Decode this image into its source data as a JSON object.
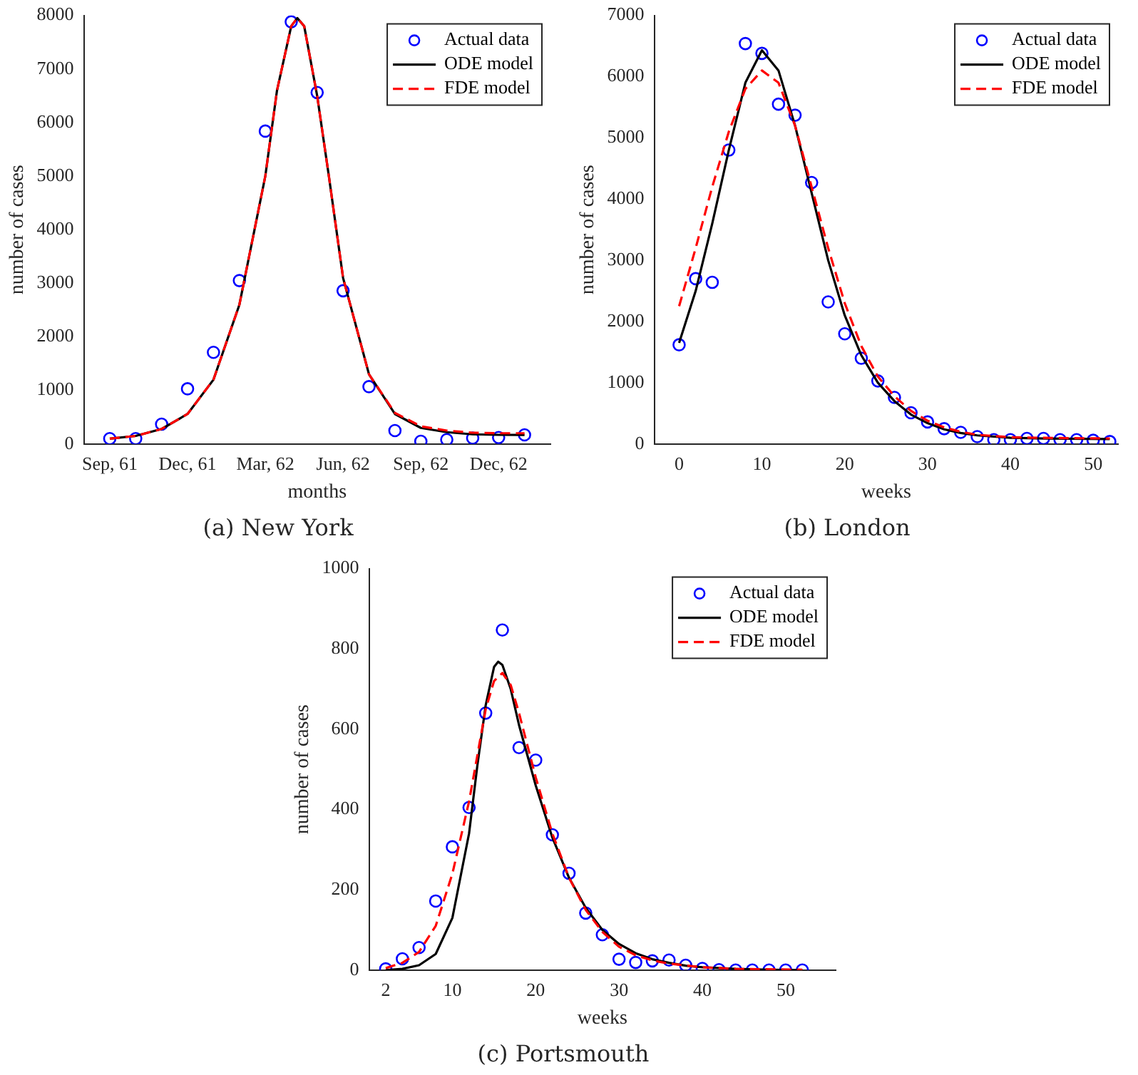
{
  "chart_data": [
    {
      "type": "line",
      "title": "(a) New York",
      "xlabel": "months",
      "ylabel": "number of cases",
      "legend": "top right",
      "grid": false,
      "xlim": [
        "1961-08",
        "1963-02"
      ],
      "xticks": [
        {
          "value": "1961-09",
          "label": "Sep, 61"
        },
        {
          "value": "1961-12",
          "label": "Dec, 61"
        },
        {
          "value": "1962-03",
          "label": "Mar, 62"
        },
        {
          "value": "1962-06",
          "label": "Jun, 62"
        },
        {
          "value": "1962-09",
          "label": "Sep, 62"
        },
        {
          "value": "1962-12",
          "label": "Dec, 62"
        }
      ],
      "ylim": [
        0,
        8000
      ],
      "yticks": [
        0,
        1000,
        2000,
        3000,
        4000,
        5000,
        6000,
        7000,
        8000
      ],
      "series": [
        {
          "name": "Actual data",
          "type": "scatter",
          "marker": "circle",
          "color": "#0000ff",
          "x": [
            "1961-09",
            "1961-10",
            "1961-11",
            "1961-12",
            "1962-01",
            "1962-02",
            "1962-03",
            "1962-04",
            "1962-05",
            "1962-06",
            "1962-07",
            "1962-08",
            "1962-09",
            "1962-10",
            "1962-11",
            "1962-12",
            "1963-01"
          ],
          "values": [
            100,
            100,
            370,
            1030,
            1710,
            3050,
            5840,
            7880,
            6560,
            2860,
            1070,
            250,
            50,
            80,
            110,
            120,
            170
          ]
        },
        {
          "name": "ODE model",
          "type": "line",
          "marker": "none",
          "line_style": "solid",
          "color": "#000000",
          "x": [
            "1961-09-01",
            "1961-10-01",
            "1961-11-01",
            "1961-12-01",
            "1962-01-01",
            "1962-02-01",
            "1962-03-01",
            "1962-03-15",
            "1962-04-01",
            "1962-04-08",
            "1962-04-16",
            "1962-05-01",
            "1962-05-15",
            "1962-06-01",
            "1962-07-01",
            "1962-08-01",
            "1962-09-01",
            "1962-10-01",
            "1962-11-01",
            "1962-12-01",
            "1963-01-01"
          ],
          "values": [
            100,
            150,
            280,
            560,
            1200,
            2600,
            5000,
            6600,
            7800,
            7950,
            7800,
            6500,
            5000,
            3100,
            1300,
            560,
            300,
            220,
            180,
            170,
            170
          ]
        },
        {
          "name": "FDE model",
          "type": "line",
          "marker": "none",
          "line_style": "dashed",
          "color": "#ff0000",
          "x": [
            "1961-09-01",
            "1961-10-01",
            "1961-11-01",
            "1961-12-01",
            "1962-01-01",
            "1962-02-01",
            "1962-03-01",
            "1962-03-15",
            "1962-04-01",
            "1962-04-08",
            "1962-04-16",
            "1962-05-01",
            "1962-05-15",
            "1962-06-01",
            "1962-07-01",
            "1962-08-01",
            "1962-09-01",
            "1962-10-01",
            "1962-11-01",
            "1962-12-01",
            "1963-01-01"
          ],
          "values": [
            100,
            150,
            280,
            560,
            1200,
            2600,
            5000,
            6600,
            7800,
            7950,
            7800,
            6500,
            5000,
            3100,
            1300,
            580,
            330,
            250,
            210,
            200,
            200
          ]
        }
      ]
    },
    {
      "type": "line",
      "title": "(b) London",
      "xlabel": "weeks",
      "ylabel": "number of cases",
      "legend": "top right",
      "grid": false,
      "xlim": [
        -3,
        53
      ],
      "xticks": [
        0,
        10,
        20,
        30,
        40,
        50
      ],
      "ylim": [
        0,
        7000
      ],
      "yticks": [
        0,
        1000,
        2000,
        3000,
        4000,
        5000,
        6000,
        7000
      ],
      "series": [
        {
          "name": "Actual data",
          "type": "scatter",
          "marker": "circle",
          "color": "#0000ff",
          "x": [
            0,
            2,
            4,
            6,
            8,
            10,
            12,
            14,
            16,
            18,
            20,
            22,
            24,
            26,
            28,
            30,
            32,
            34,
            36,
            38,
            40,
            42,
            44,
            46,
            48,
            50,
            52
          ],
          "values": [
            1620,
            2700,
            2640,
            4800,
            6540,
            6380,
            5550,
            5370,
            4270,
            2320,
            1800,
            1400,
            1030,
            760,
            510,
            360,
            250,
            190,
            120,
            70,
            70,
            90,
            90,
            70,
            70,
            60,
            40
          ]
        },
        {
          "name": "ODE model",
          "type": "line",
          "marker": "none",
          "line_style": "solid",
          "color": "#000000",
          "x": [
            0,
            2,
            4,
            6,
            8,
            10,
            12,
            14,
            16,
            18,
            20,
            22,
            24,
            26,
            28,
            30,
            32,
            34,
            36,
            40,
            44,
            52
          ],
          "values": [
            1650,
            2500,
            3600,
            4800,
            5900,
            6430,
            6100,
            5200,
            4100,
            3000,
            2100,
            1450,
            1000,
            700,
            480,
            340,
            240,
            180,
            140,
            100,
            90,
            80
          ]
        },
        {
          "name": "FDE model",
          "type": "line",
          "marker": "none",
          "line_style": "dashed",
          "color": "#ff0000",
          "x": [
            0,
            2,
            4,
            6,
            8,
            10,
            12,
            14,
            16,
            18,
            20,
            22,
            24,
            26,
            28,
            30,
            32,
            34,
            36,
            40,
            44,
            52
          ],
          "values": [
            2250,
            3200,
            4200,
            5100,
            5800,
            6100,
            5900,
            5200,
            4200,
            3200,
            2300,
            1600,
            1100,
            780,
            540,
            380,
            270,
            200,
            150,
            110,
            100,
            90
          ]
        }
      ]
    },
    {
      "type": "line",
      "title": "(c) Portsmouth",
      "xlabel": "weeks",
      "ylabel": "number of cases",
      "legend": "top right",
      "grid": false,
      "xlim": [
        0,
        56
      ],
      "xticks": [
        2,
        10,
        20,
        30,
        40,
        50
      ],
      "ylim": [
        0,
        1000
      ],
      "yticks": [
        0,
        200,
        400,
        600,
        800,
        1000
      ],
      "series": [
        {
          "name": "Actual data",
          "type": "scatter",
          "marker": "circle",
          "color": "#0000ff",
          "x": [
            2,
            4,
            6,
            8,
            10,
            12,
            14,
            16,
            18,
            20,
            22,
            24,
            26,
            28,
            30,
            32,
            34,
            36,
            38,
            40,
            42,
            44,
            46,
            48,
            50,
            52
          ],
          "values": [
            3,
            28,
            56,
            172,
            307,
            405,
            640,
            847,
            554,
            523,
            337,
            241,
            142,
            88,
            27,
            19,
            23,
            25,
            12,
            4,
            1,
            0,
            0,
            0,
            0,
            0
          ]
        },
        {
          "name": "ODE model",
          "type": "line",
          "marker": "none",
          "line_style": "solid",
          "color": "#000000",
          "x": [
            2,
            4,
            6,
            8,
            10,
            12,
            13,
            14,
            15,
            15.5,
            16,
            17,
            18,
            20,
            22,
            24,
            26,
            28,
            30,
            32,
            34,
            36,
            38,
            40,
            44,
            48,
            52
          ],
          "values": [
            0,
            3,
            12,
            40,
            130,
            340,
            510,
            660,
            755,
            768,
            760,
            700,
            610,
            460,
            330,
            230,
            155,
            100,
            65,
            42,
            27,
            18,
            11,
            7,
            3,
            1,
            0
          ]
        },
        {
          "name": "FDE model",
          "type": "line",
          "marker": "none",
          "line_style": "dashed",
          "color": "#ff0000",
          "x": [
            2,
            4,
            6,
            8,
            10,
            12,
            14,
            15,
            16,
            17,
            18,
            20,
            22,
            24,
            26,
            28,
            30,
            32,
            34,
            36,
            40,
            44,
            52
          ],
          "values": [
            5,
            18,
            45,
            110,
            240,
            420,
            650,
            720,
            740,
            710,
            640,
            480,
            340,
            230,
            150,
            95,
            58,
            37,
            24,
            16,
            7,
            3,
            1
          ]
        }
      ]
    }
  ]
}
